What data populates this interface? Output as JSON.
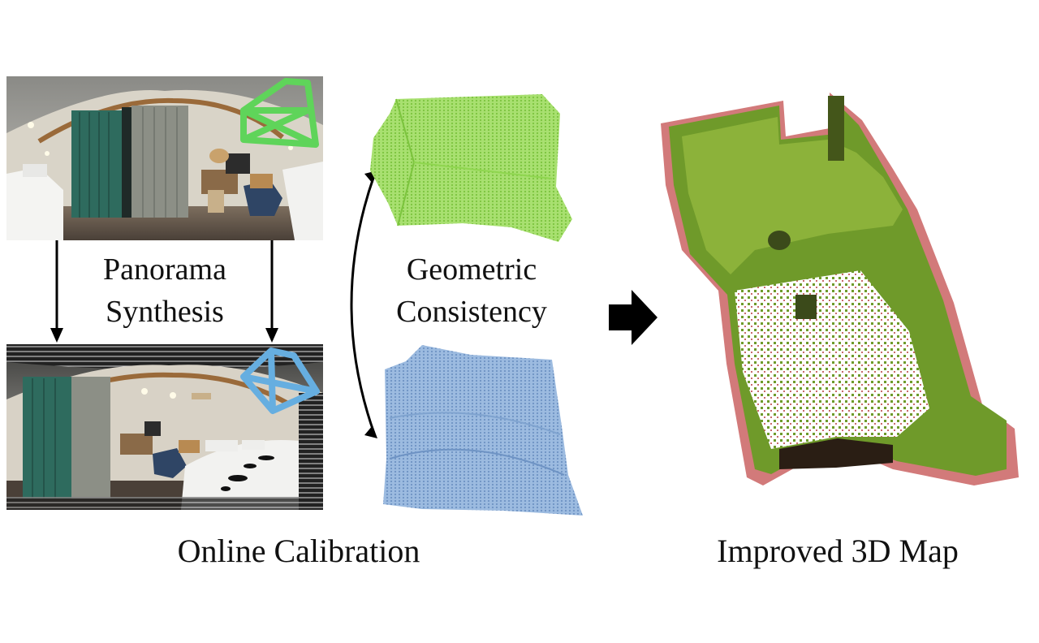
{
  "labels": {
    "panorama_synthesis": [
      "Panorama",
      "Synthesis"
    ],
    "geometric_consistency": [
      "Geometric",
      "Consistency"
    ],
    "online_calibration": "Online Calibration",
    "improved_map": "Improved 3D Map"
  },
  "colors": {
    "green_cloud": "#8fd64f",
    "blue_cloud": "#7fa3cf",
    "green_camera": "#5fd45a",
    "blue_camera": "#66aee0",
    "map_green": "#6f9a2a",
    "map_red": "#d27a7a",
    "arrow": "#000000"
  },
  "icons": {
    "camera_top": "camera-frustum-icon",
    "camera_bottom": "camera-frustum-icon",
    "flow_arrow": "right-arrow-icon"
  }
}
